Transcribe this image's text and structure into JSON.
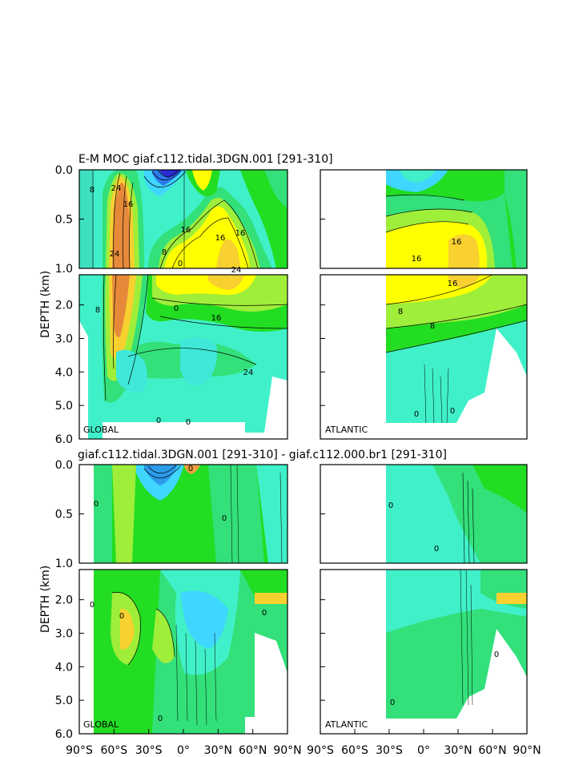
{
  "figure": {
    "title_top": "E-M MOC  giaf.c112.tidal.3DGN.001  [291-310]",
    "title_bottom": "giaf.c112.tidal.3DGN.001  [291-310]  -  giaf.c112.000.br1  [291-310]",
    "ylabel": "DEPTH (km)",
    "region_labels": {
      "global": "GLOBAL",
      "atlantic": "ATLANTIC"
    }
  },
  "chart_data": [
    {
      "type": "heatmap",
      "id": "moc_global",
      "title": "E-M MOC  giaf.c112.tidal.3DGN.001  [291-310]",
      "region": "GLOBAL",
      "xlabel": "",
      "ylabel": "DEPTH (km)",
      "xlim": [
        -90,
        90
      ],
      "ylim": [
        6.0,
        0.0
      ],
      "y_ticks_upper": [
        "0.0",
        "0.5",
        "1.0"
      ],
      "y_ticks_lower": [
        "2.0",
        "3.0",
        "4.0",
        "5.0",
        "6.0"
      ],
      "contour_labels": [
        "24",
        "24",
        "16",
        "8",
        "16",
        "16",
        "16",
        "24",
        "8",
        "0",
        "16",
        "24",
        "8",
        "0",
        "0",
        "0"
      ],
      "colors": [
        "#2b2bd6",
        "#3fd6ff",
        "#40f0c8",
        "#33e07a",
        "#22dd22",
        "#9fee3a",
        "#ffff00",
        "#f8d030",
        "#f2a040",
        "#e68a3a"
      ]
    },
    {
      "type": "heatmap",
      "id": "moc_atlantic",
      "region": "ATLANTIC",
      "xlim": [
        -90,
        90
      ],
      "ylim": [
        6.0,
        0.0
      ],
      "contour_labels": [
        "16",
        "16",
        "16",
        "8",
        "8",
        "0",
        "0"
      ]
    },
    {
      "type": "heatmap",
      "id": "diff_global",
      "title": "giaf.c112.tidal.3DGN.001  [291-310]  -  giaf.c112.000.br1  [291-310]",
      "region": "GLOBAL",
      "xlim": [
        -90,
        90
      ],
      "ylim": [
        6.0,
        0.0
      ],
      "contour_labels": [
        "0",
        "0",
        "0",
        "0",
        "0",
        "0",
        "0"
      ]
    },
    {
      "type": "heatmap",
      "id": "diff_atlantic",
      "region": "ATLANTIC",
      "xlim": [
        -90,
        90
      ],
      "ylim": [
        6.0,
        0.0
      ],
      "contour_labels": [
        "0",
        "0",
        "0",
        "0"
      ]
    }
  ],
  "x_ticks": [
    "90°S",
    "60°S",
    "30°S",
    "0°",
    "30°N",
    "60°N",
    "90°N"
  ]
}
